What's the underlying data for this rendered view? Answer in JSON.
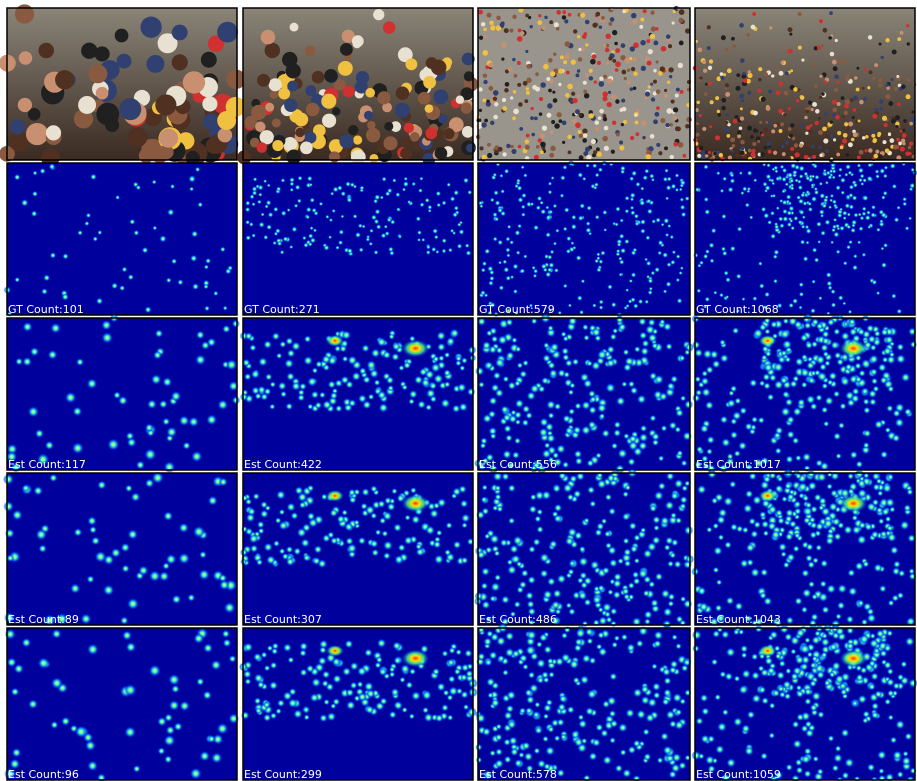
{
  "grid": {
    "rows": [
      [
        "GT Count:101",
        "GT Count:271",
        "GT Count:579",
        "GT Count:1068"
      ],
      [
        "Est Count:117",
        "Est Count:422",
        "Est Count:556",
        "Est Count:1017"
      ],
      [
        "Est Count:89",
        "Est Count:307",
        "Est Count:486",
        "Est Count:1043"
      ],
      [
        "Est Count:96",
        "Est Count:299",
        "Est Count:578",
        "Est Count:1059"
      ]
    ]
  }
}
